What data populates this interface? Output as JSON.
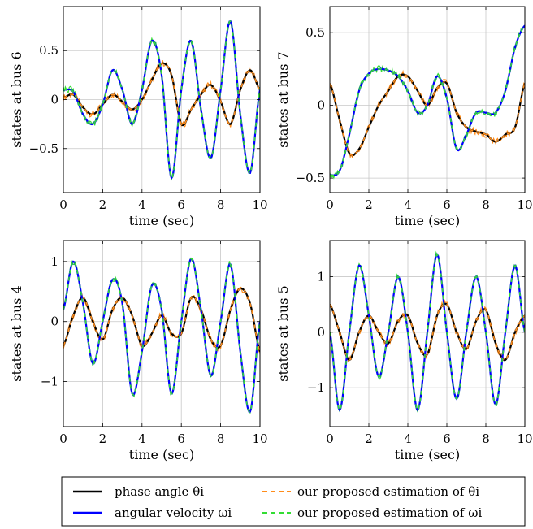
{
  "chart_data": [
    {
      "type": "line",
      "ylabel": "states at bus 6",
      "xlabel": "time (sec)",
      "xlim": [
        0,
        10
      ],
      "ylim": [
        -0.95,
        0.95
      ],
      "xticks": [
        0,
        2,
        4,
        6,
        8,
        10
      ],
      "yticks": [
        -0.5,
        0,
        0.5
      ],
      "ytick_labels": [
        "−0.5",
        "0",
        "0.5"
      ],
      "grid": true,
      "series": [
        {
          "name": "phase angle θi",
          "key": "theta",
          "x": [
            0,
            0.5,
            1,
            1.5,
            2,
            2.5,
            3,
            3.5,
            4,
            4.5,
            5,
            5.5,
            6,
            6.5,
            7,
            7.5,
            8,
            8.5,
            9,
            9.5,
            10
          ],
          "y": [
            0.02,
            0.05,
            -0.08,
            -0.15,
            -0.05,
            0.05,
            -0.02,
            -0.1,
            0,
            0.2,
            0.37,
            0.25,
            -0.25,
            -0.1,
            0.05,
            0.15,
            -0.02,
            -0.25,
            0.1,
            0.3,
            0.1
          ]
        },
        {
          "name": "angular velocity ωi",
          "key": "omega",
          "x": [
            0,
            0.5,
            1,
            1.5,
            2,
            2.5,
            3,
            3.5,
            4,
            4.5,
            5,
            5.5,
            6,
            6.5,
            7,
            7.5,
            8,
            8.5,
            9,
            9.5,
            10
          ],
          "y": [
            0.1,
            0.08,
            -0.15,
            -0.25,
            -0.05,
            0.3,
            0.1,
            -0.25,
            0.1,
            0.6,
            0.25,
            -0.8,
            0.1,
            0.6,
            -0.1,
            -0.6,
            0.1,
            0.8,
            -0.15,
            -0.75,
            0.1
          ]
        }
      ]
    },
    {
      "type": "line",
      "ylabel": "states at bus 7",
      "xlabel": "time (sec)",
      "xlim": [
        0,
        10
      ],
      "ylim": [
        -0.6,
        0.68
      ],
      "xticks": [
        0,
        2,
        4,
        6,
        8,
        10
      ],
      "yticks": [
        -0.5,
        0,
        0.5
      ],
      "ytick_labels": [
        "−0.5",
        "0",
        "0.5"
      ],
      "grid": true,
      "series": [
        {
          "name": "phase angle θi",
          "key": "theta",
          "x": [
            0,
            0.5,
            1,
            1.5,
            2,
            2.5,
            3,
            3.5,
            4,
            4.5,
            5,
            5.5,
            6,
            6.5,
            7,
            7.5,
            8,
            8.5,
            9,
            9.5,
            10
          ],
          "y": [
            0.15,
            -0.1,
            -0.33,
            -0.3,
            -0.15,
            0,
            0.1,
            0.2,
            0.2,
            0.1,
            0,
            0.12,
            0.15,
            -0.05,
            -0.15,
            -0.18,
            -0.2,
            -0.25,
            -0.2,
            -0.15,
            0.15
          ]
        },
        {
          "name": "angular velocity ωi",
          "key": "omega",
          "x": [
            0,
            0.5,
            1,
            1.5,
            2,
            2.5,
            3,
            3.5,
            4,
            4.5,
            5,
            5.5,
            6,
            6.5,
            7,
            7.5,
            8,
            8.5,
            9,
            9.5,
            10
          ],
          "y": [
            -0.48,
            -0.45,
            -0.2,
            0.1,
            0.22,
            0.25,
            0.24,
            0.2,
            0.1,
            -0.05,
            0,
            0.2,
            0.05,
            -0.3,
            -0.2,
            -0.05,
            -0.05,
            -0.05,
            0.1,
            0.4,
            0.55
          ]
        }
      ]
    },
    {
      "type": "line",
      "ylabel": "states at bus 4",
      "xlabel": "time (sec)",
      "xlim": [
        0,
        10
      ],
      "ylim": [
        -1.75,
        1.35
      ],
      "xticks": [
        0,
        2,
        4,
        6,
        8,
        10
      ],
      "yticks": [
        -1,
        0,
        1
      ],
      "ytick_labels": [
        "−1",
        "0",
        "1"
      ],
      "grid": true,
      "series": [
        {
          "name": "phase angle θi",
          "key": "theta",
          "x": [
            0,
            0.5,
            1,
            1.5,
            2,
            2.5,
            3,
            3.5,
            4,
            4.5,
            5,
            5.5,
            6,
            6.5,
            7,
            7.5,
            8,
            8.5,
            9,
            9.5,
            10
          ],
          "y": [
            -0.4,
            0.1,
            0.4,
            0,
            -0.3,
            0.2,
            0.4,
            0.1,
            -0.4,
            -0.2,
            0.1,
            -0.2,
            -0.2,
            0.4,
            0.2,
            -0.3,
            -0.4,
            0.2,
            0.55,
            0.3,
            -0.5
          ]
        },
        {
          "name": "angular velocity ωi",
          "key": "omega",
          "x": [
            0,
            0.5,
            1,
            1.5,
            2,
            2.5,
            3,
            3.5,
            4,
            4.5,
            5,
            5.5,
            6,
            6.5,
            7,
            7.5,
            8,
            8.5,
            9,
            9.5,
            10
          ],
          "y": [
            0.2,
            1.0,
            0.3,
            -0.7,
            0,
            0.7,
            0.3,
            -1.2,
            -0.5,
            0.6,
            0.2,
            -1.2,
            0,
            1.05,
            0.2,
            -0.9,
            0,
            0.95,
            -0.5,
            -1.5,
            0
          ]
        }
      ]
    },
    {
      "type": "line",
      "ylabel": "states at bus 5",
      "xlabel": "time (sec)",
      "xlim": [
        0,
        10
      ],
      "ylim": [
        -1.7,
        1.65
      ],
      "xticks": [
        0,
        2,
        4,
        6,
        8,
        10
      ],
      "yticks": [
        -1,
        0,
        1
      ],
      "ytick_labels": [
        "−1",
        "0",
        "1"
      ],
      "grid": true,
      "series": [
        {
          "name": "phase angle θi",
          "key": "theta",
          "x": [
            0,
            0.5,
            1,
            1.5,
            2,
            2.5,
            3,
            3.5,
            4,
            4.5,
            5,
            5.5,
            6,
            6.5,
            7,
            7.5,
            8,
            8.5,
            9,
            9.5,
            10
          ],
          "y": [
            0.5,
            0,
            -0.5,
            0,
            0.3,
            0,
            -0.2,
            0.2,
            0.3,
            -0.2,
            -0.4,
            0.3,
            0.5,
            0,
            -0.3,
            0.2,
            0.4,
            -0.2,
            -0.5,
            0,
            0.3
          ]
        },
        {
          "name": "angular velocity ωi",
          "key": "omega",
          "x": [
            0,
            0.5,
            1,
            1.5,
            2,
            2.5,
            3,
            3.5,
            4,
            4.5,
            5,
            5.5,
            6,
            6.5,
            7,
            7.5,
            8,
            8.5,
            9,
            9.5,
            10
          ],
          "y": [
            0,
            -1.4,
            0,
            1.2,
            0.3,
            -0.8,
            0,
            1.0,
            0,
            -1.4,
            0,
            1.4,
            0,
            -1.2,
            0,
            1.0,
            0,
            -1.3,
            0,
            1.2,
            0
          ]
        }
      ]
    }
  ],
  "legend": {
    "items": [
      {
        "label": "phase angle θi",
        "color": "#000000",
        "style": "solid"
      },
      {
        "label": "our proposed estimation of θi",
        "color": "#ff8c1a",
        "style": "dashed"
      },
      {
        "label": "angular velocity ωi",
        "color": "#0000ff",
        "style": "solid"
      },
      {
        "label": "our proposed estimation of ωi",
        "color": "#33dd33",
        "style": "dashed"
      }
    ]
  },
  "colors": {
    "theta": "#000000",
    "theta_est": "#ff8c1a",
    "omega": "#0000ff",
    "omega_est": "#33dd33",
    "grid": "#c8c8c8"
  }
}
